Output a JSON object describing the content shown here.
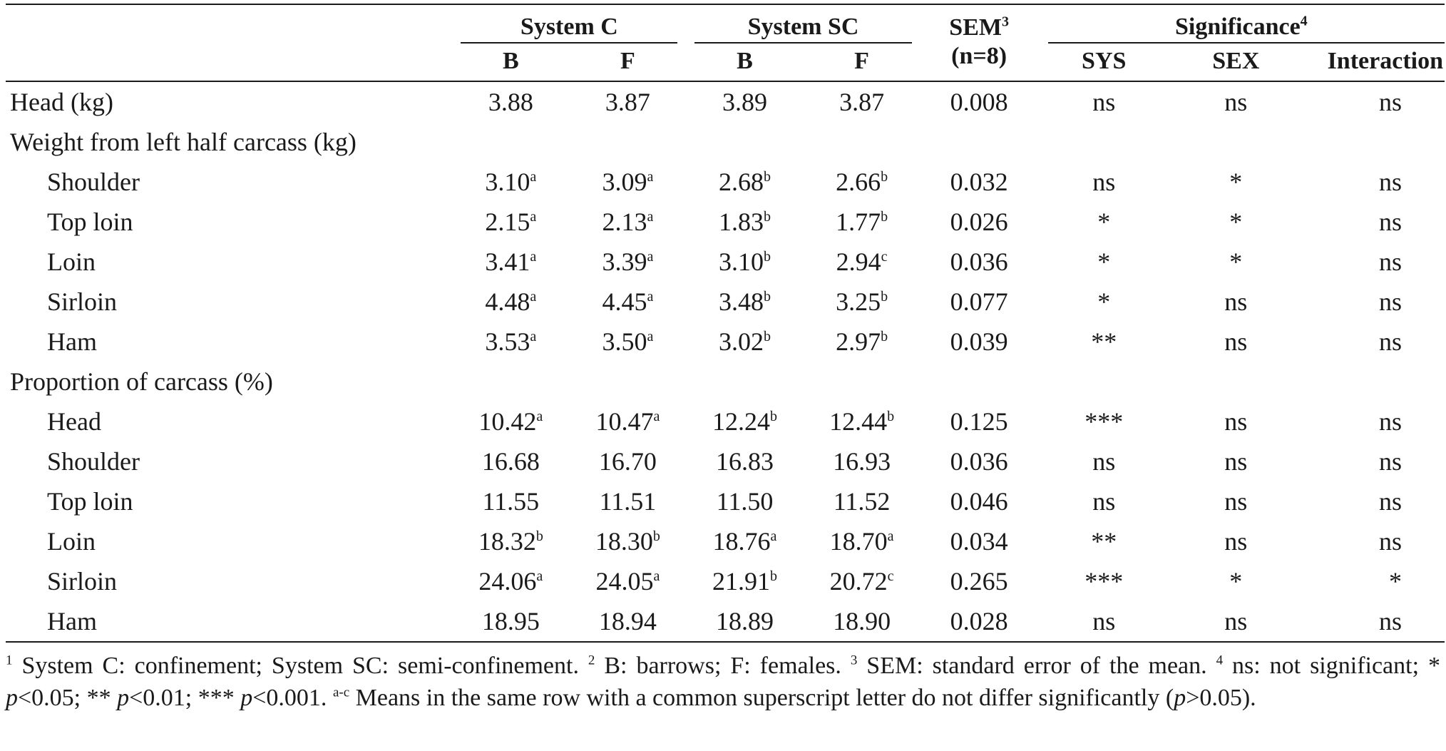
{
  "table": {
    "groups": [
      {
        "label": "System C"
      },
      {
        "label": "System SC"
      },
      {
        "label": "SEM",
        "sup": "3",
        "sub_label": "(n=8)"
      },
      {
        "label": "Significance",
        "sup": "4"
      }
    ],
    "subheaders": {
      "c_b": "B",
      "c_f": "F",
      "sc_b": "B",
      "sc_f": "F",
      "sys": "SYS",
      "sex": "SEX",
      "interaction": "Interaction"
    },
    "rows": [
      {
        "label": "Head (kg)",
        "indent": false,
        "cb": "3.88",
        "cb_sup": "",
        "cf": "3.87",
        "cf_sup": "",
        "scb": "3.89",
        "scb_sup": "",
        "scf": "3.87",
        "scf_sup": "",
        "sem": "0.008",
        "sys": "ns",
        "sex": "ns",
        "int": "ns"
      },
      {
        "label": "Weight from left half carcass (kg)",
        "indent": false,
        "section": true
      },
      {
        "label": "Shoulder",
        "indent": true,
        "cb": "3.10",
        "cb_sup": "a",
        "cf": "3.09",
        "cf_sup": "a",
        "scb": "2.68",
        "scb_sup": "b",
        "scf": "2.66",
        "scf_sup": "b",
        "sem": "0.032",
        "sys": "ns",
        "sex": "*",
        "int": "ns"
      },
      {
        "label": "Top loin",
        "indent": true,
        "cb": "2.15",
        "cb_sup": "a",
        "cf": "2.13",
        "cf_sup": "a",
        "scb": "1.83",
        "scb_sup": "b",
        "scf": "1.77",
        "scf_sup": "b",
        "sem": "0.026",
        "sys": "*",
        "sex": "*",
        "int": "ns"
      },
      {
        "label": "Loin",
        "indent": true,
        "cb": "3.41",
        "cb_sup": "a",
        "cf": "3.39",
        "cf_sup": "a",
        "scb": "3.10",
        "scb_sup": "b",
        "scf": "2.94",
        "scf_sup": "c",
        "sem": "0.036",
        "sys": "*",
        "sex": "*",
        "int": "ns"
      },
      {
        "label": "Sirloin",
        "indent": true,
        "cb": "4.48",
        "cb_sup": "a",
        "cf": "4.45",
        "cf_sup": "a",
        "scb": "3.48",
        "scb_sup": "b",
        "scf": "3.25",
        "scf_sup": "b",
        "sem": "0.077",
        "sys": "*",
        "sex": "ns",
        "int": "ns"
      },
      {
        "label": "Ham",
        "indent": true,
        "cb": "3.53",
        "cb_sup": "a",
        "cf": "3.50",
        "cf_sup": "a",
        "scb": "3.02",
        "scb_sup": "b",
        "scf": "2.97",
        "scf_sup": "b",
        "sem": "0.039",
        "sys": "**",
        "sex": "ns",
        "int": "ns"
      },
      {
        "label": "Proportion of carcass (%)",
        "indent": false,
        "section": true
      },
      {
        "label": "Head",
        "indent": true,
        "cb": "10.42",
        "cb_sup": "a",
        "cf": "10.47",
        "cf_sup": "a",
        "scb": "12.24",
        "scb_sup": "b",
        "scf": "12.44",
        "scf_sup": "b",
        "sem": "0.125",
        "sys": "***",
        "sex": "ns",
        "int": "ns"
      },
      {
        "label": "Shoulder",
        "indent": true,
        "cb": "16.68",
        "cb_sup": "",
        "cf": "16.70",
        "cf_sup": "",
        "scb": "16.83",
        "scb_sup": "",
        "scf": "16.93",
        "scf_sup": "",
        "sem": "0.036",
        "sys": "ns",
        "sex": "ns",
        "int": "ns"
      },
      {
        "label": "Top loin",
        "indent": true,
        "cb": "11.55",
        "cb_sup": "",
        "cf": "11.51",
        "cf_sup": "",
        "scb": "11.50",
        "scb_sup": "",
        "scf": "11.52",
        "scf_sup": "",
        "sem": "0.046",
        "sys": "ns",
        "sex": "ns",
        "int": "ns"
      },
      {
        "label": "Loin",
        "indent": true,
        "cb": "18.32",
        "cb_sup": "b",
        "cf": "18.30",
        "cf_sup": "b",
        "scb": "18.76",
        "scb_sup": "a",
        "scf": "18.70",
        "scf_sup": "a",
        "sem": "0.034",
        "sys": "**",
        "sex": "ns",
        "int": "ns"
      },
      {
        "label": "Sirloin",
        "indent": true,
        "cb": "24.06",
        "cb_sup": "a",
        "cf": "24.05",
        "cf_sup": "a",
        "scb": "21.91",
        "scb_sup": "b",
        "scf": "20.72",
        "scf_sup": "c",
        "sem": "0.265",
        "sys": "***",
        "sex": "*",
        "int": "*"
      },
      {
        "label": "Ham",
        "indent": true,
        "cb": "18.95",
        "cb_sup": "",
        "cf": "18.94",
        "cf_sup": "",
        "scb": "18.89",
        "scb_sup": "",
        "scf": "18.90",
        "scf_sup": "",
        "sem": "0.028",
        "sys": "ns",
        "sex": "ns",
        "int": "ns"
      }
    ]
  },
  "footnote": {
    "n1": "1",
    "t1": " System C: confinement; System SC: semi-confinement. ",
    "n2": "2",
    "t2": " B: barrows; F: females. ",
    "n3": "3",
    "t3": " SEM: standard error of the mean. ",
    "n4": "4",
    "t4": " ns: not significant; * ",
    "p1": "p",
    "t5": "<0.05; ** ",
    "p2": "p",
    "t6": "<0.01; *** ",
    "p3": "p",
    "t7": "<0.001. ",
    "nac": "a-c",
    "t8": " Means in the same row with a common superscript letter do not differ significantly (",
    "p4": "p",
    "t9": ">0.05)."
  }
}
